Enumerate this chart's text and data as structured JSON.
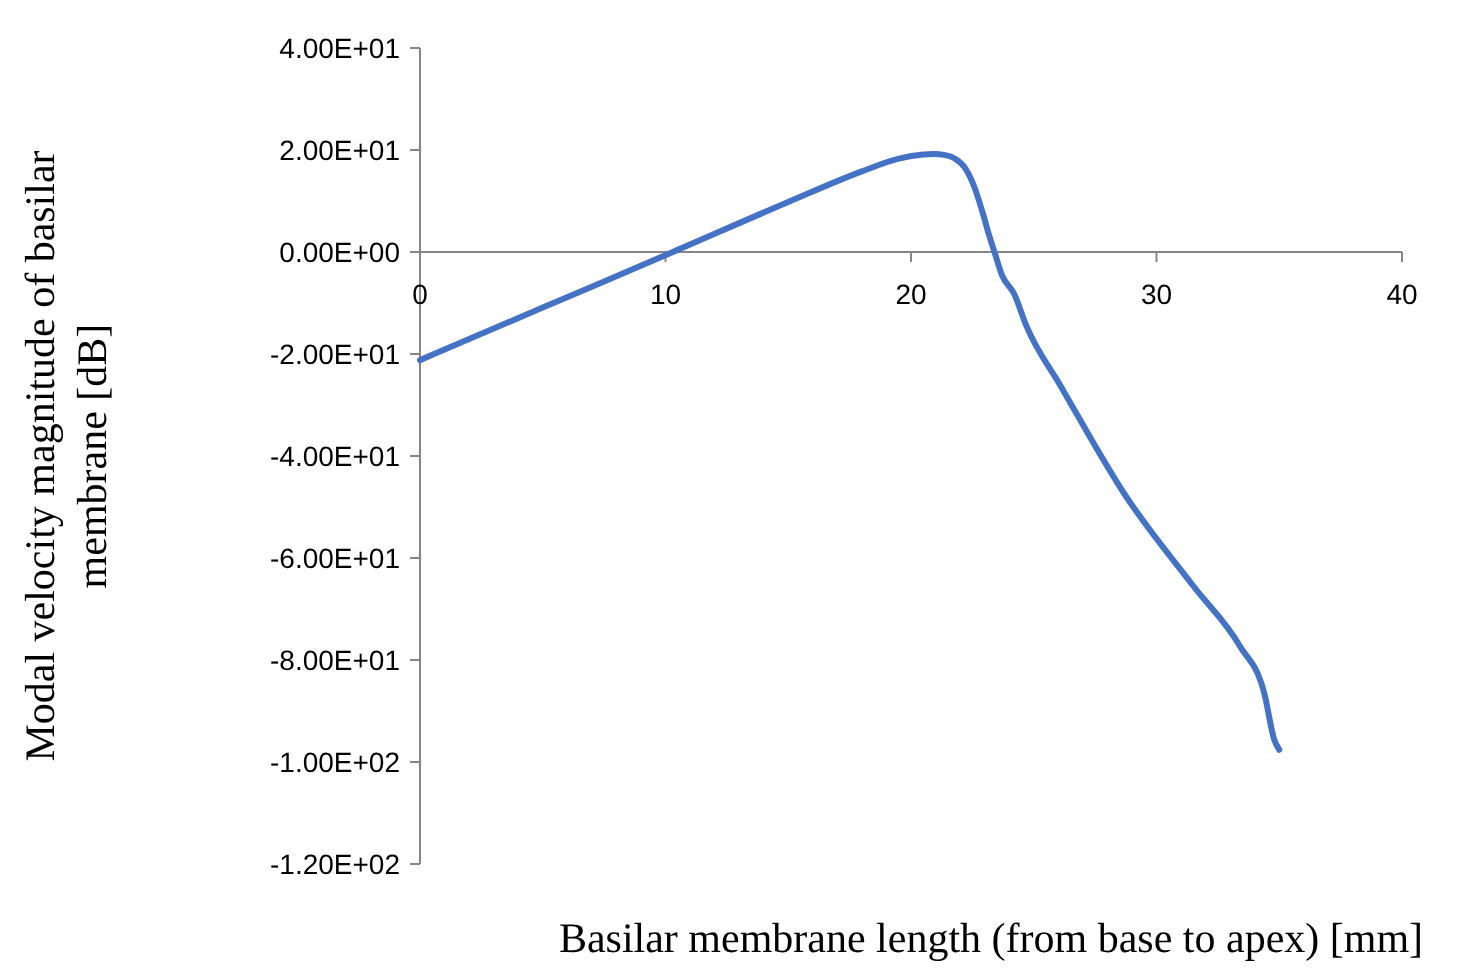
{
  "chart_data": {
    "type": "line",
    "xlabel": "Basilar membrane length (from base to apex) [mm]",
    "ylabel": "Modal velocity magnitude of basilar membrane [dB]",
    "series": [
      {
        "color": "#4472c4",
        "x": [
          0,
          5,
          10.3,
          15,
          18,
          19.5,
          20.5,
          20.9,
          21.4,
          21.8,
          22.2,
          22.6,
          22.9,
          23.2,
          23.4,
          23.7,
          24.2,
          24.7,
          26.1,
          28.7,
          31.5,
          33.4,
          34.4,
          34.8,
          35
        ],
        "values": [
          -21.2,
          -10.9,
          0,
          9.8,
          15.8,
          18.3,
          19.1,
          19.2,
          19,
          18.3,
          16.5,
          12.5,
          8,
          3,
          0,
          -4.5,
          -8.2,
          -14.5,
          -26.3,
          -47.5,
          -65.5,
          -77.3,
          -86.7,
          -95.7,
          -97.6
        ]
      }
    ],
    "xlim": [
      0,
      40
    ],
    "xticks": [
      0,
      10,
      20,
      30,
      40
    ],
    "ylim": [
      -120,
      40
    ],
    "yticks": [
      {
        "value": -120,
        "label": "-1.20E+02"
      },
      {
        "value": -100,
        "label": "-1.00E+02"
      },
      {
        "value": -80,
        "label": "-8.00E+01"
      },
      {
        "value": -60,
        "label": "-6.00E+01"
      },
      {
        "value": -40,
        "label": "-4.00E+01"
      },
      {
        "value": -20,
        "label": "-2.00E+01"
      },
      {
        "value": 0,
        "label": "0.00E+00"
      },
      {
        "value": 20,
        "label": "2.00E+01"
      },
      {
        "value": 40,
        "label": "4.00E+01"
      }
    ],
    "grid": false,
    "marker": "none",
    "line_style": "solid"
  }
}
